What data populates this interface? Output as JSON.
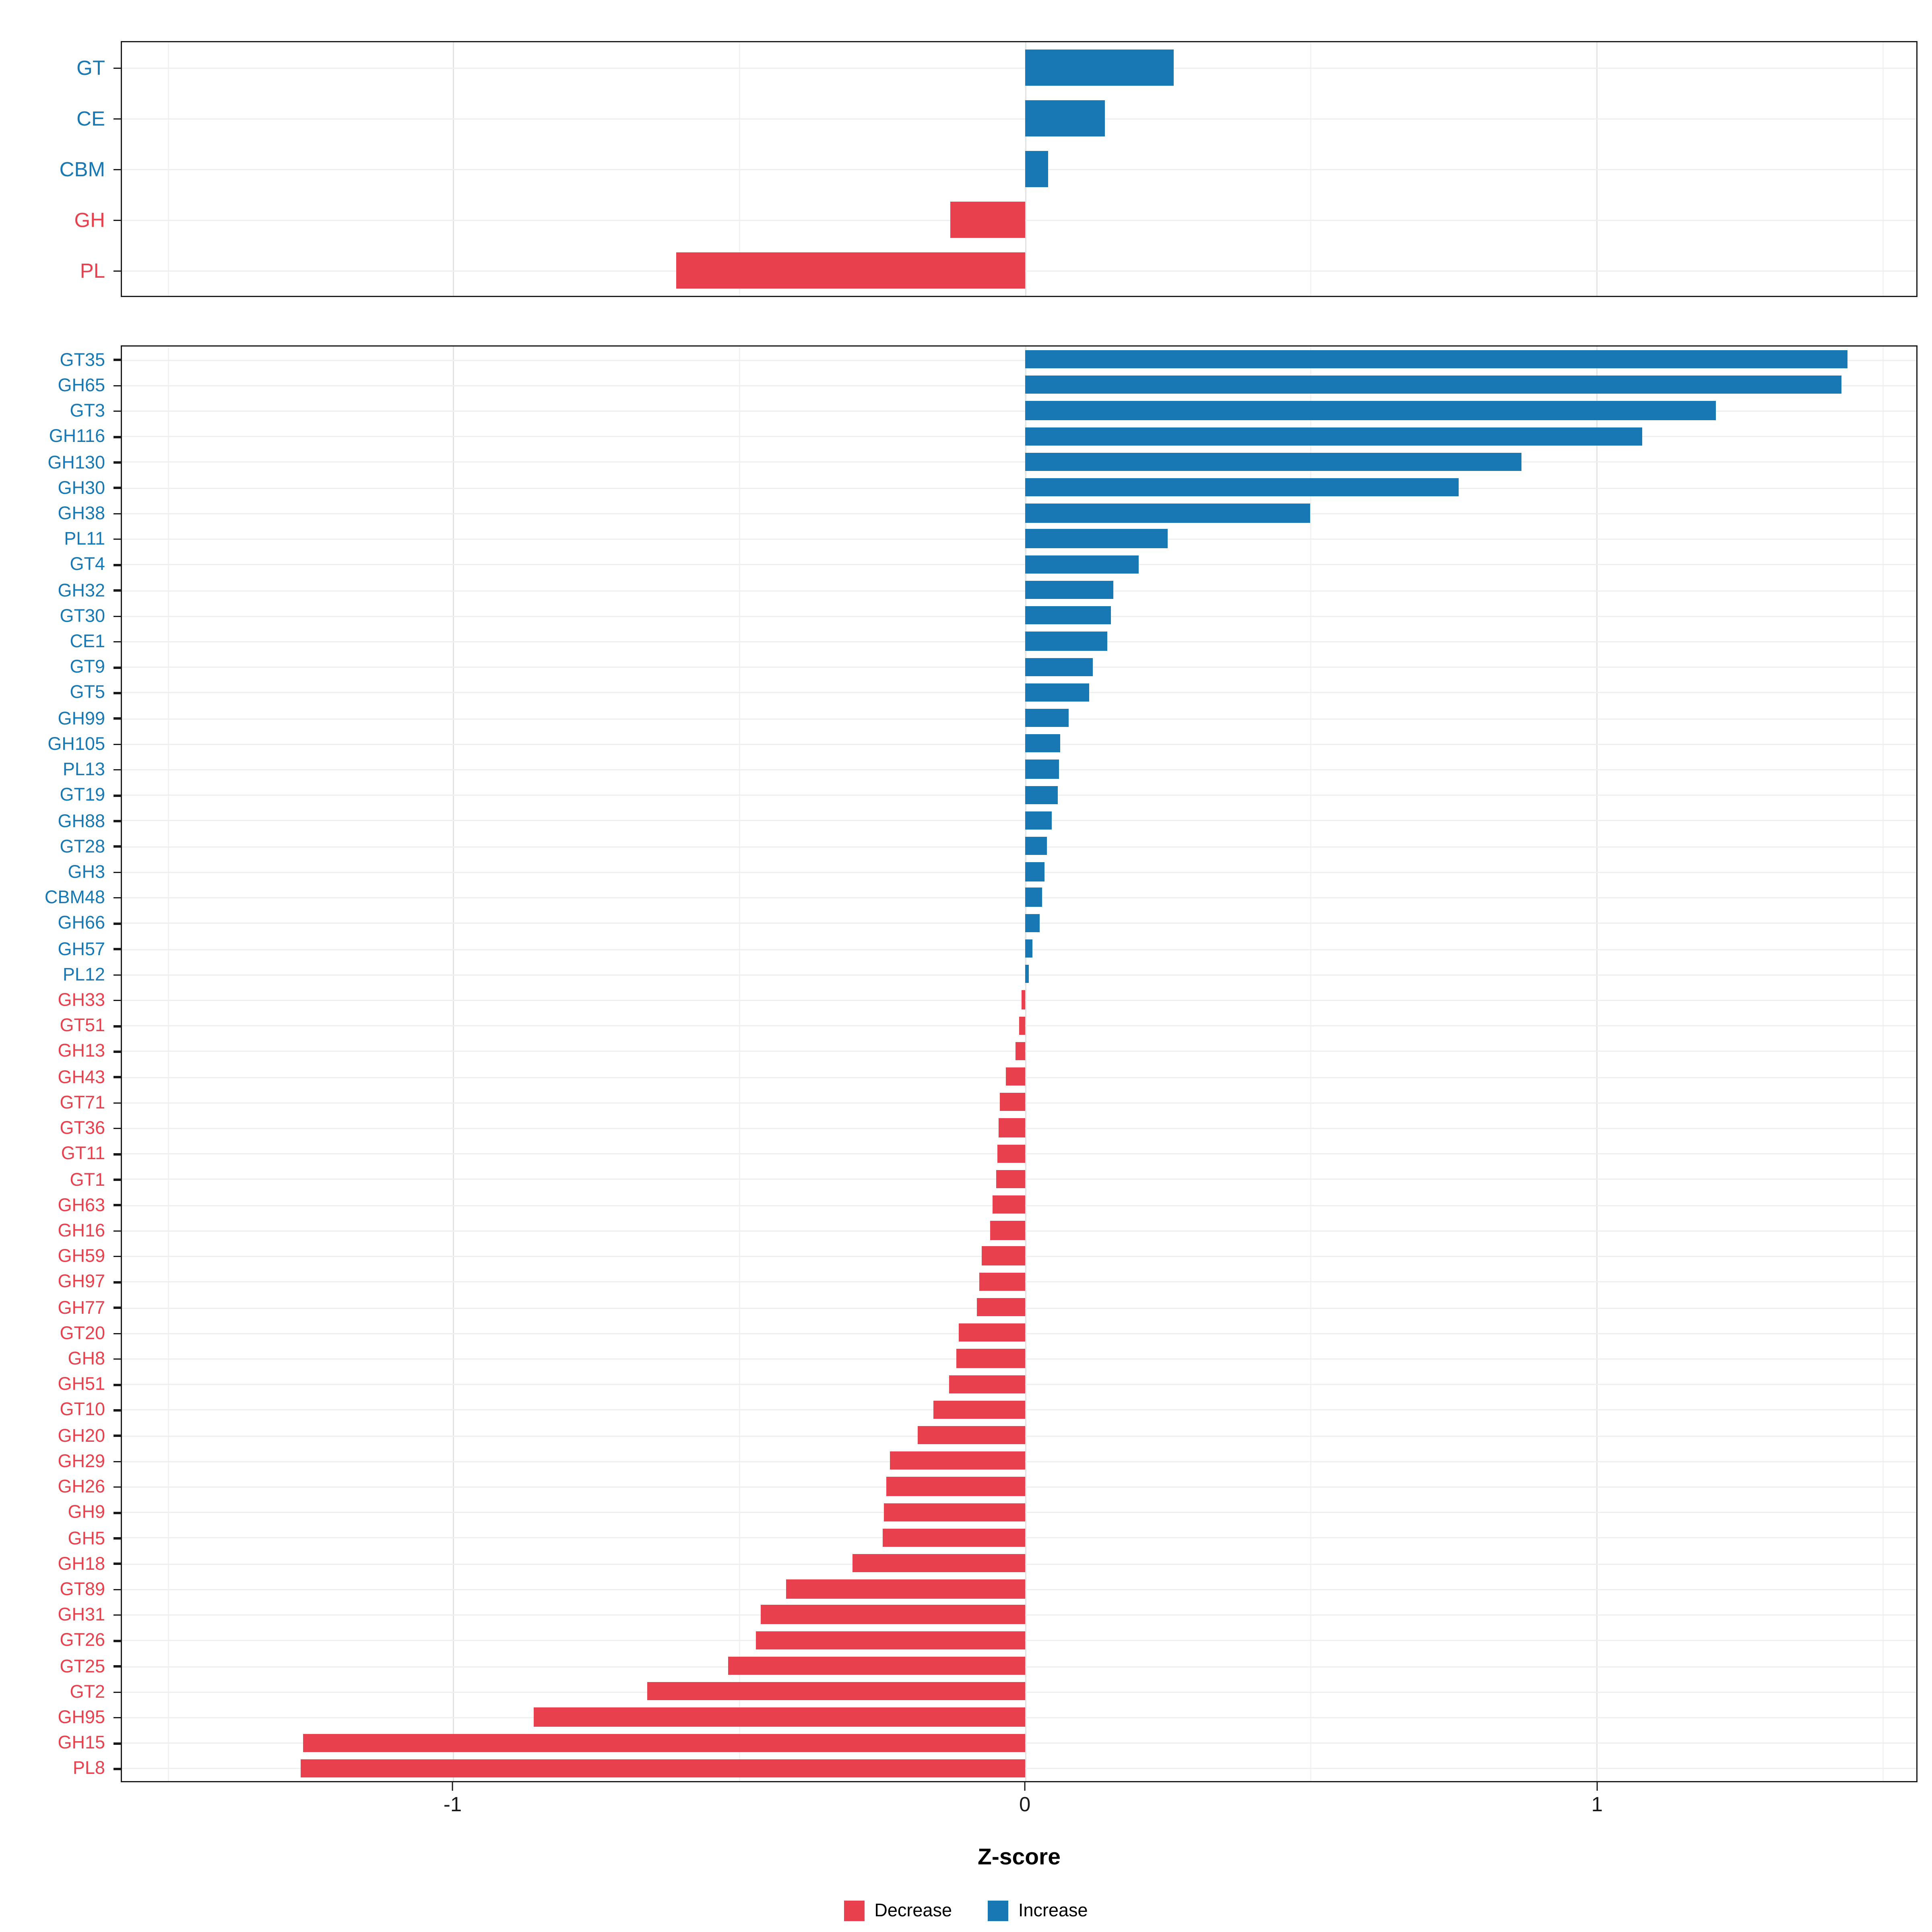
{
  "colors": {
    "increase": "#1878B4",
    "decrease": "#E8404C",
    "grid_major": "#E2E2E2",
    "grid_minor": "#F2F2F2",
    "panel_border": "#1A1A1A"
  },
  "legend": {
    "items": [
      {
        "label": "Decrease",
        "color_key": "decrease"
      },
      {
        "label": "Increase",
        "color_key": "increase"
      }
    ],
    "position": "bottom-center"
  },
  "chart_data": {
    "type": "bar",
    "orientation": "horizontal",
    "title": "",
    "xlabel": "Z-score",
    "ylabel": "",
    "xlim": [
      -1.58,
      1.56
    ],
    "grid": true,
    "xticks": [
      {
        "value": -1,
        "label": "-1"
      },
      {
        "value": 0,
        "label": "0"
      },
      {
        "value": 1,
        "label": "1"
      }
    ],
    "minor_gridlines": [
      -1.5,
      -0.5,
      0.5,
      1.5
    ],
    "color_rule": "positive values = increase (blue), negative values = decrease (red); y-axis labels colored to match bars",
    "panels": [
      {
        "name": "cazy-class-summary",
        "categories": [
          "GT",
          "CE",
          "CBM",
          "GH",
          "PL"
        ],
        "values": [
          0.26,
          0.14,
          0.04,
          -0.13,
          -0.61
        ]
      },
      {
        "name": "cazy-families",
        "categories": [
          "GT35",
          "GH65",
          "GT3",
          "GH116",
          "GH130",
          "GH30",
          "GH38",
          "PL11",
          "GT4",
          "GH32",
          "GT30",
          "CE1",
          "GT9",
          "GT5",
          "GH99",
          "GH105",
          "PL13",
          "GT19",
          "GH88",
          "GT28",
          "GH3",
          "CBM48",
          "GH66",
          "GH57",
          "PL12",
          "GH33",
          "GT51",
          "GH13",
          "GH43",
          "GT71",
          "GT36",
          "GT11",
          "GT1",
          "GH63",
          "GH16",
          "GH59",
          "GH97",
          "GH77",
          "GT20",
          "GH8",
          "GH51",
          "GT10",
          "GH20",
          "GH29",
          "GH26",
          "GH9",
          "GH5",
          "GH18",
          "GT89",
          "GH31",
          "GT26",
          "GT25",
          "GT2",
          "GH95",
          "GH15",
          "PL8"
        ],
        "values": [
          1.44,
          1.43,
          1.21,
          1.08,
          0.87,
          0.76,
          0.5,
          0.25,
          0.2,
          0.155,
          0.15,
          0.145,
          0.118,
          0.112,
          0.077,
          0.062,
          0.06,
          0.058,
          0.047,
          0.039,
          0.034,
          0.03,
          0.026,
          0.013,
          0.006,
          -0.006,
          -0.01,
          -0.016,
          -0.034,
          -0.043,
          -0.045,
          -0.049,
          -0.05,
          -0.056,
          -0.06,
          -0.075,
          -0.08,
          -0.084,
          -0.116,
          -0.12,
          -0.133,
          -0.161,
          -0.187,
          -0.237,
          -0.243,
          -0.247,
          -0.249,
          -0.301,
          -0.417,
          -0.462,
          -0.471,
          -0.52,
          -0.66,
          -0.86,
          -1.262,
          -1.268
        ]
      }
    ]
  }
}
